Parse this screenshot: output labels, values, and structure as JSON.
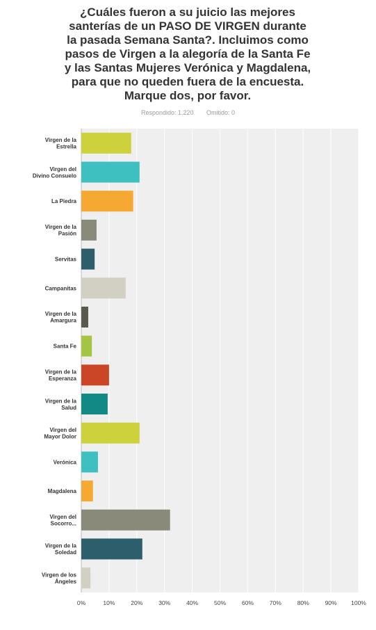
{
  "question": {
    "title": "¿Cuáles fueron a su juicio las mejores santerías de un PASO DE VIRGEN durante la pasada Semana Santa?. Incluimos como pasos de Virgen a la alegoría de la Santa Fe y las Santas Mujeres Verónica y Magdalena, para que no queden fuera de la encuesta. Marque dos, por favor.",
    "answered": "Respondido: 1.220",
    "skipped": "Omitido: 0"
  },
  "chart_data": {
    "type": "bar",
    "orientation": "horizontal",
    "categories": [
      [
        "Virgen de la",
        "Estrella"
      ],
      [
        "Virgen del",
        "Divino Consuelo"
      ],
      [
        "La Piedra"
      ],
      [
        "Virgen de la",
        "Pasión"
      ],
      [
        "Servitas"
      ],
      [
        "Campanitas"
      ],
      [
        "Virgen de la",
        "Amargura"
      ],
      [
        "Santa Fe"
      ],
      [
        "Virgen de la",
        "Esperanza"
      ],
      [
        "Virgen de la",
        "Salud"
      ],
      [
        "Virgen del",
        "Mayor Dolor"
      ],
      [
        "Verónica"
      ],
      [
        "Magdalena"
      ],
      [
        "Virgen del",
        "Socorro..."
      ],
      [
        "Virgen de la",
        "Soledad"
      ],
      [
        "Virgen de los",
        "Ángeles"
      ]
    ],
    "values": [
      18,
      21,
      18.7,
      5.5,
      4.8,
      16,
      2.5,
      3.8,
      10,
      9.5,
      21,
      6,
      4.2,
      32,
      22,
      3.3
    ],
    "colors": [
      "#cdd23c",
      "#3ebfc0",
      "#f5a933",
      "#8a8a7b",
      "#2d5e6c",
      "#d2d0c2",
      "#5a5a4c",
      "#a4c544",
      "#cb4627",
      "#138985",
      "#cdd23c",
      "#3ebfc0",
      "#f5a933",
      "#8a8a7b",
      "#2d5e6c",
      "#d2d0c2"
    ],
    "xticks": [
      "0%",
      "10%",
      "20%",
      "30%",
      "40%",
      "50%",
      "60%",
      "70%",
      "80%",
      "90%",
      "100%"
    ],
    "xlim": [
      0,
      100
    ],
    "grid": true,
    "plot_background": "#efefef",
    "grid_color": "#ffffff"
  }
}
